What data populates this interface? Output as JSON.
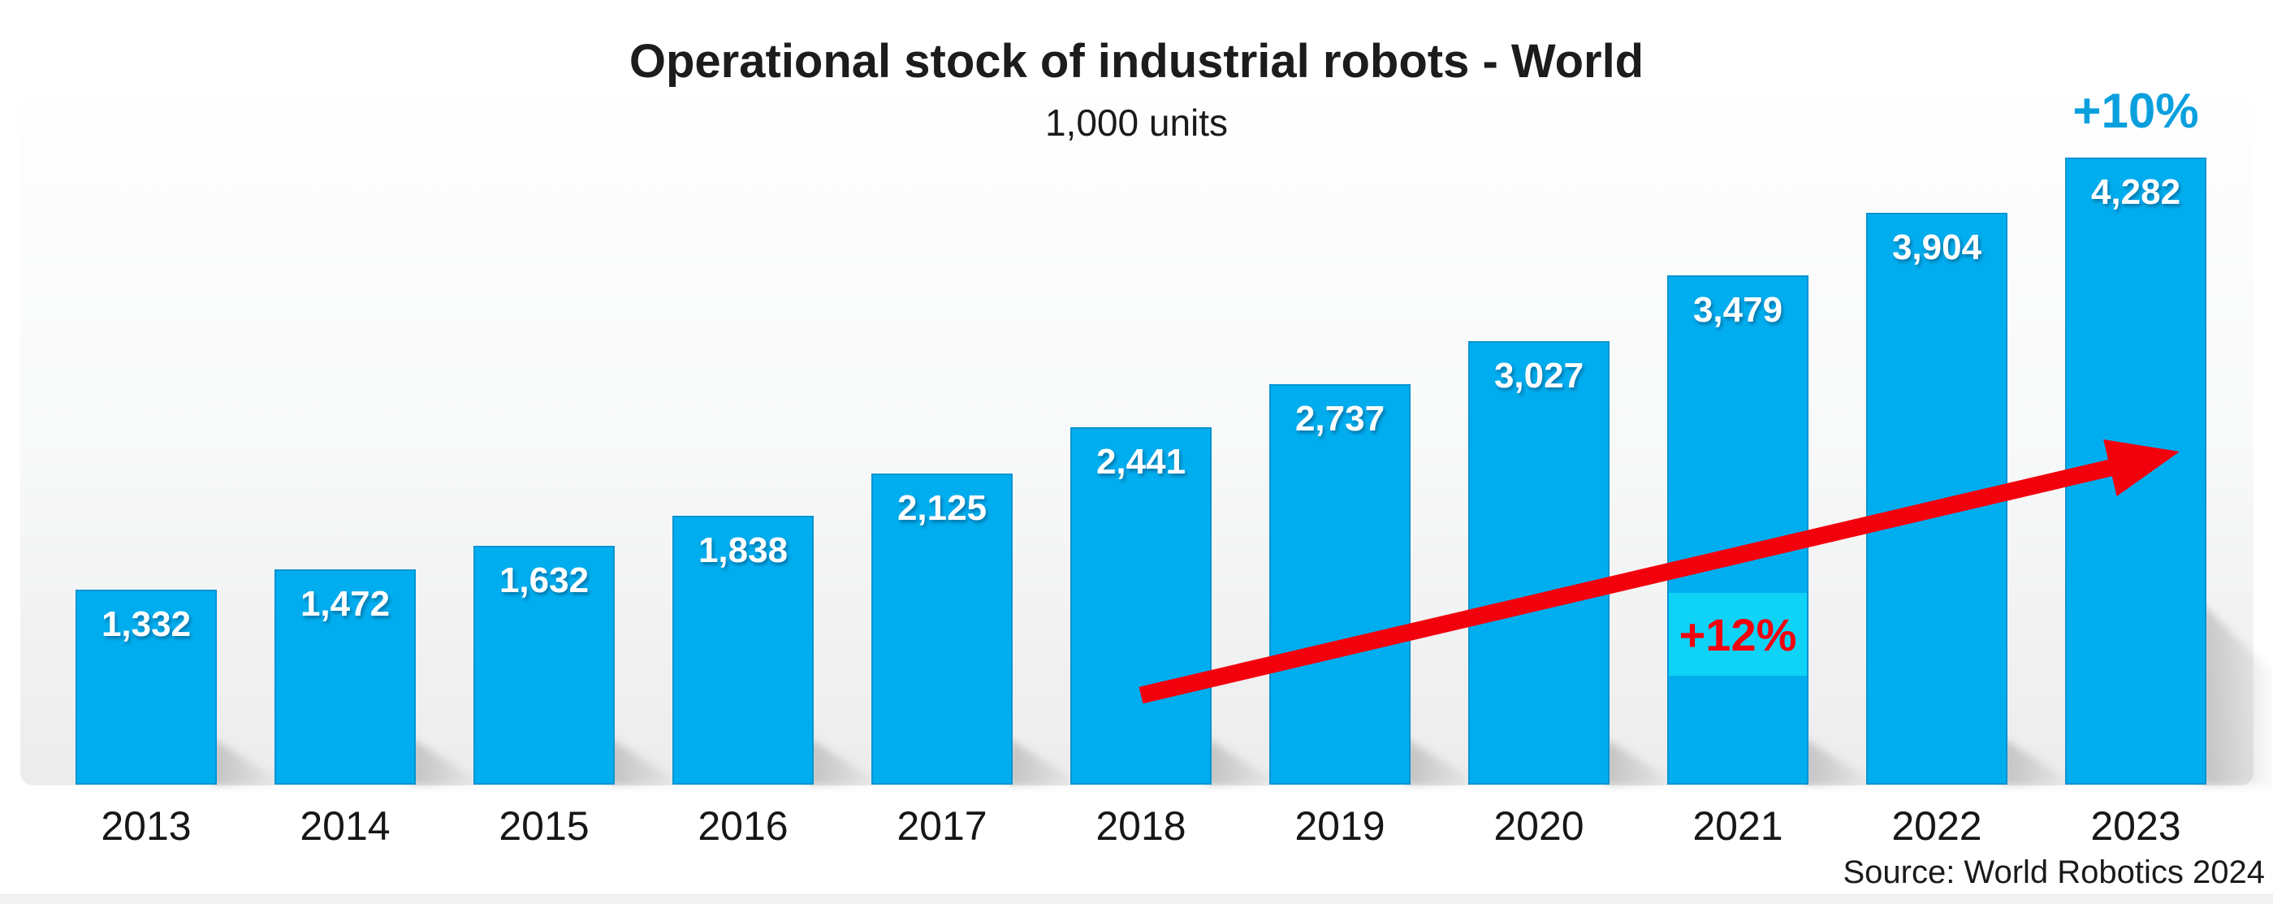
{
  "chart_data": {
    "type": "bar",
    "title": "Operational stock of industrial robots - World",
    "unit": "1,000 units",
    "source": "Source: World Robotics 2024",
    "categories": [
      "2013",
      "2014",
      "2015",
      "2016",
      "2017",
      "2018",
      "2019",
      "2020",
      "2021",
      "2022",
      "2023"
    ],
    "values": [
      1332,
      1472,
      1632,
      1838,
      2125,
      2441,
      2737,
      3027,
      3479,
      3904,
      4282
    ],
    "value_labels": [
      "1,332",
      "1,472",
      "1,632",
      "1,838",
      "2,125",
      "2,441",
      "2,737",
      "3,027",
      "3,479",
      "3,904",
      "4,282"
    ],
    "xlabel": "",
    "ylabel": "",
    "ylim": [
      0,
      4500
    ],
    "grid": false,
    "legend": false,
    "annotations": [
      {
        "type": "highlight-label",
        "text": "+12%",
        "target": "2021",
        "color": "#F3000D",
        "box_color": "#0ED3F7"
      },
      {
        "type": "label-above-bar",
        "text": "+10%",
        "target": "2023",
        "color": "#0AA0DE"
      },
      {
        "type": "trend-arrow",
        "from_category": "2018",
        "to_category": "2023",
        "color": "#F3000D"
      }
    ],
    "colors": {
      "bar_fill": "#00AEEF",
      "bar_border": "#0A7DB9",
      "value_label_text": "#FFFFFF",
      "axis_label_text": "#161616",
      "title_text": "#1C1C1C",
      "arrow_red": "#F3000D",
      "growth_blue": "#0AA0DE",
      "highlight_box_cyan": "#0ED3F7"
    }
  }
}
